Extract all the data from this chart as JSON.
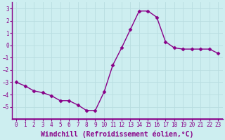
{
  "x": [
    0,
    1,
    2,
    3,
    4,
    5,
    6,
    7,
    8,
    9,
    10,
    11,
    12,
    13,
    14,
    15,
    16,
    17,
    18,
    19,
    20,
    21,
    22,
    23
  ],
  "y": [
    -3.0,
    -3.3,
    -3.7,
    -3.85,
    -4.1,
    -4.5,
    -4.5,
    -4.85,
    -5.3,
    -5.3,
    -3.8,
    -1.6,
    -0.2,
    1.3,
    2.8,
    2.8,
    2.3,
    0.3,
    -0.2,
    -0.3,
    -0.3,
    -0.3,
    -0.3,
    -0.65
  ],
  "line_color": "#880088",
  "marker": "D",
  "marker_size": 2.5,
  "bg_color": "#cdeef0",
  "grid_color": "#b8dde0",
  "xlabel": "Windchill (Refroidissement éolien,°C)",
  "ylim": [
    -6,
    3.5
  ],
  "xlim": [
    -0.5,
    23.5
  ],
  "yticks": [
    -5,
    -4,
    -3,
    -2,
    -1,
    0,
    1,
    2,
    3
  ],
  "xticks": [
    0,
    1,
    2,
    3,
    4,
    5,
    6,
    7,
    8,
    9,
    10,
    11,
    12,
    13,
    14,
    15,
    16,
    17,
    18,
    19,
    20,
    21,
    22,
    23
  ],
  "xlabel_fontsize": 7,
  "tick_fontsize": 5.5,
  "line_width": 1.0,
  "spine_color": "#880088",
  "separator_color": "#880088"
}
